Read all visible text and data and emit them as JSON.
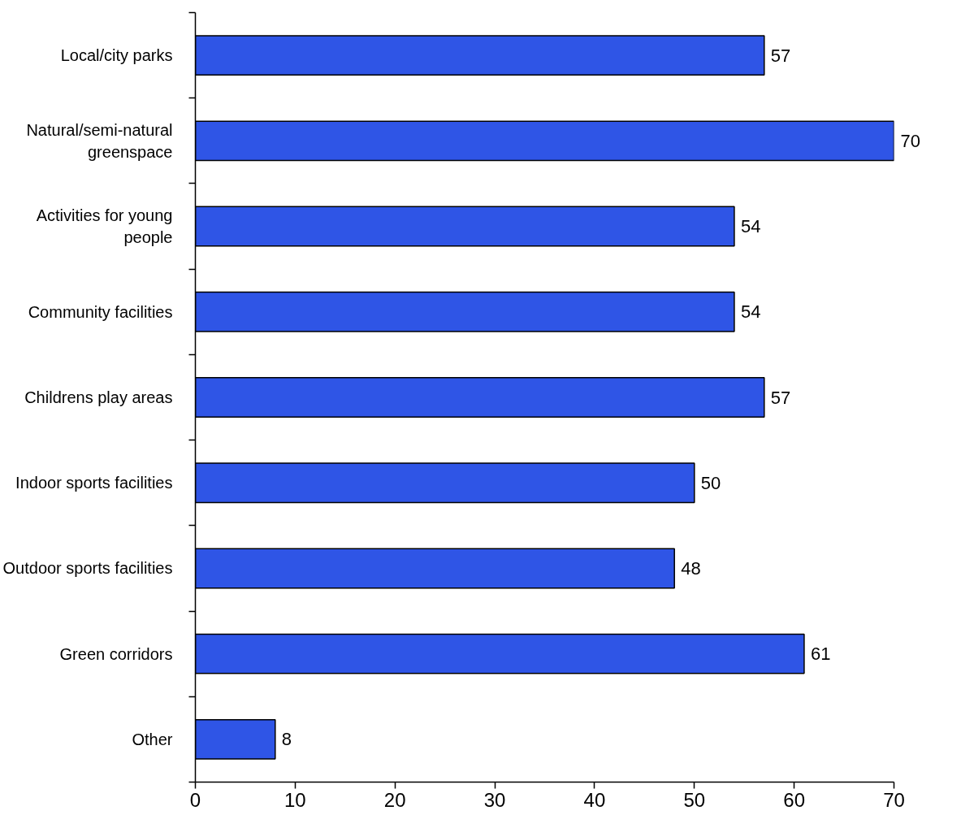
{
  "chart_data": {
    "type": "bar",
    "orientation": "horizontal",
    "categories": [
      "Local/city parks",
      "Natural/semi-natural greenspace",
      "Activities for young people",
      "Community facilities",
      "Childrens play areas",
      "Indoor sports facilities",
      "Outdoor sports facilities",
      "Green corridors",
      "Other"
    ],
    "values": [
      57,
      70,
      54,
      54,
      57,
      50,
      48,
      61,
      8
    ],
    "color": "#2f55e6",
    "xlim": [
      0,
      70
    ],
    "xticks": [
      0,
      10,
      20,
      30,
      40,
      50,
      60,
      70
    ],
    "data_labels": true,
    "grid": false
  }
}
